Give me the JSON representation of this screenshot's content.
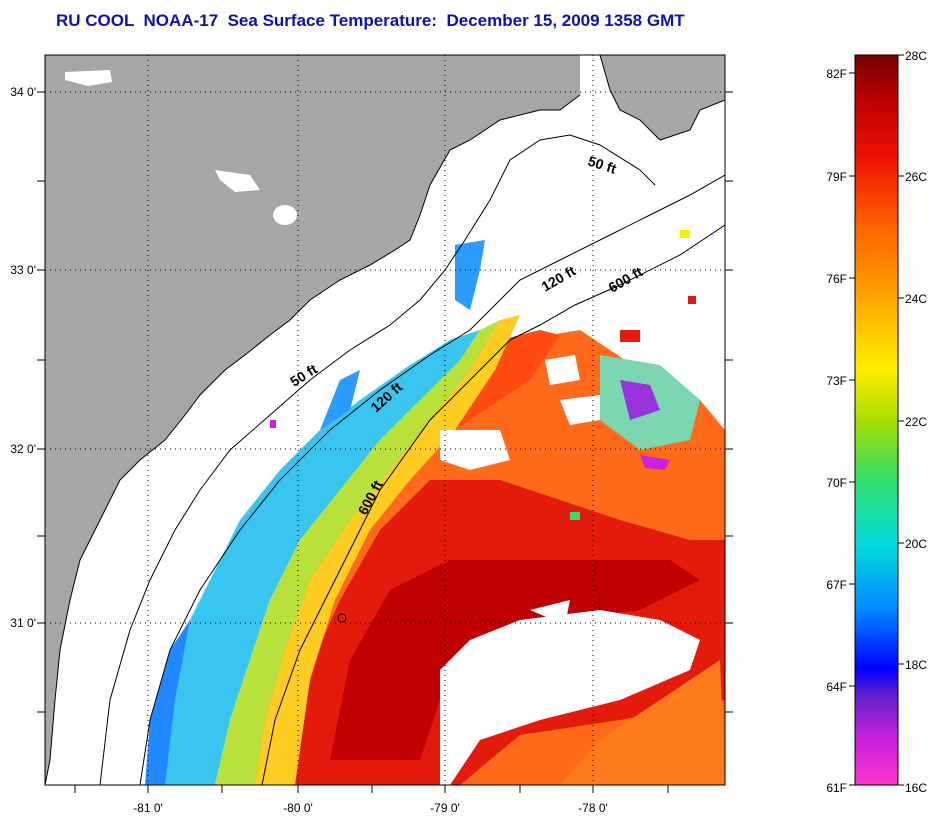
{
  "title": "RU COOL  NOAA-17  Sea Surface Temperature:  December 15, 2009 1358 GMT",
  "map": {
    "lat_ticks": [
      "34 0'",
      "33 0'",
      "32 0'",
      "31 0'"
    ],
    "lon_ticks": [
      "-81 0'",
      "-80 0'",
      "-79 0'",
      "-78 0'"
    ],
    "isobath_labels": [
      "50 ft",
      "120 ft",
      "600 ft",
      "50 ft",
      "120 ft",
      "600 ft"
    ],
    "colors": {
      "land": "#a6a6a6",
      "no_data": "#ffffff",
      "coast": "#000000"
    }
  },
  "colorbar": {
    "fahrenheit_labels": [
      "82F",
      "79F",
      "76F",
      "73F",
      "70F",
      "67F",
      "64F",
      "61F"
    ],
    "celsius_labels": [
      "28C",
      "26C",
      "24C",
      "22C",
      "20C",
      "18C",
      "16C"
    ],
    "range_celsius": [
      16,
      28
    ],
    "gradient_colors": [
      "#ff33cc",
      "#cc22dd",
      "#6622cc",
      "#0000ff",
      "#0088ff",
      "#00dddd",
      "#33dd66",
      "#aadd00",
      "#ffee00",
      "#ffaa00",
      "#ff6600",
      "#ee1100",
      "#bb0000",
      "#770000"
    ]
  }
}
